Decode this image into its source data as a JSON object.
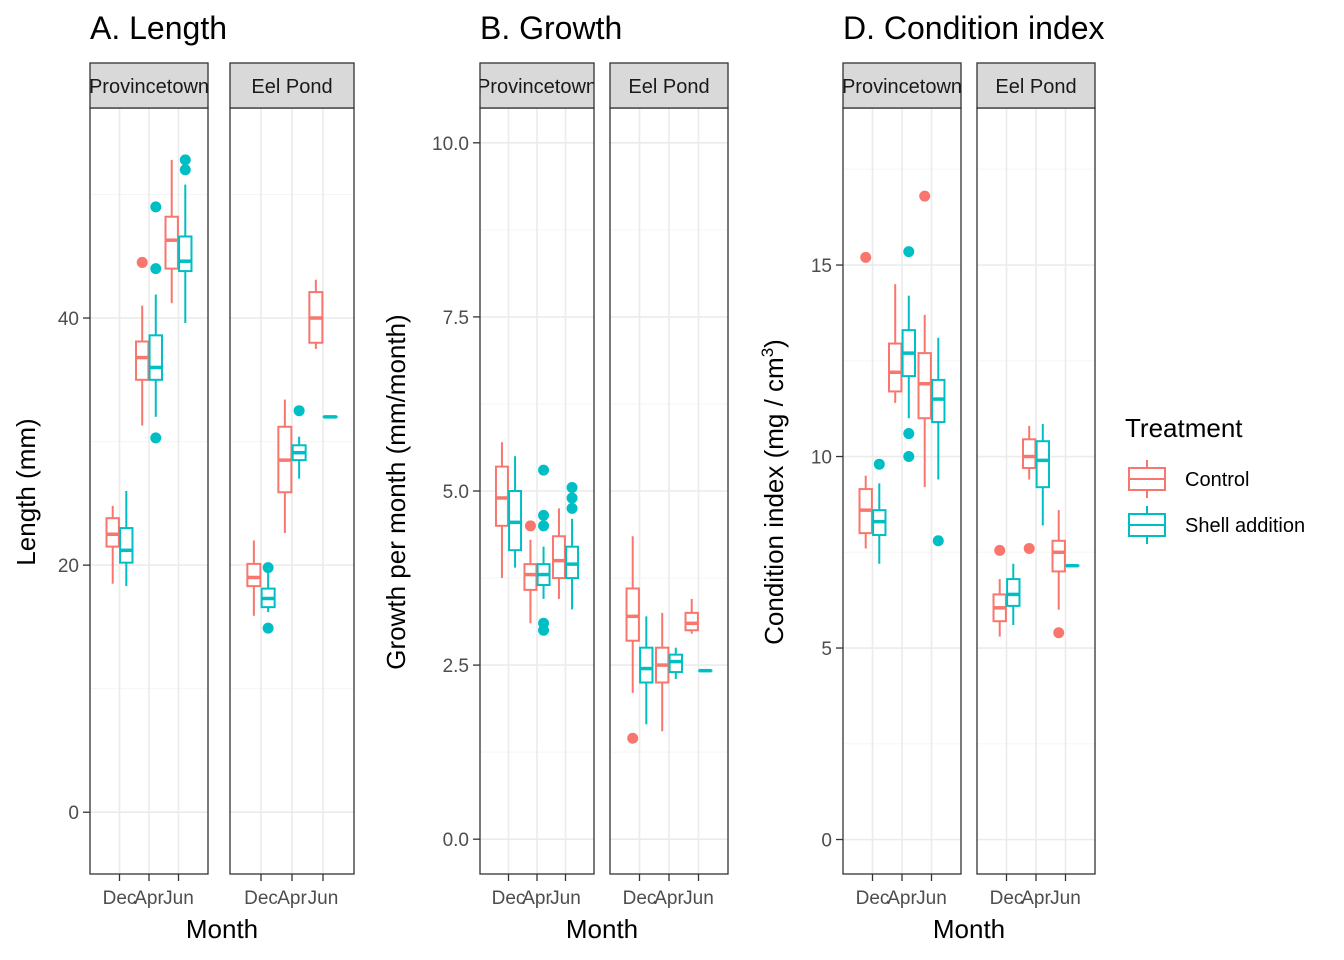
{
  "colors": {
    "control": "#F8766D",
    "shell": "#00BFC4",
    "grid_major": "#EBEBEB",
    "grid_minor": "#F5F5F5",
    "panel_border": "#333333",
    "strip_fill": "#D9D9D9"
  },
  "legend": {
    "title": "Treatment",
    "items": [
      {
        "label": "Control",
        "color": "#F8766D"
      },
      {
        "label": "Shell addition",
        "color": "#00BFC4"
      }
    ]
  },
  "chart_data": [
    {
      "type": "boxplot",
      "title": "A. Length",
      "xlabel": "Month",
      "ylabel": "Length (mm)",
      "ylim": [
        -5,
        57
      ],
      "yticks": [
        0,
        20,
        40
      ],
      "ytick_labels": [
        "0",
        "20",
        "40"
      ],
      "categories": [
        "Dec",
        "Apr",
        "Jun"
      ],
      "facets": [
        {
          "name": "Provincetown",
          "strip_label": "Provincetown",
          "groups": [
            {
              "month": "Dec",
              "treatment": "Control",
              "min": 18.5,
              "q1": 21.5,
              "median": 22.5,
              "q3": 23.8,
              "max": 24.8,
              "outliers": []
            },
            {
              "month": "Dec",
              "treatment": "Shell addition",
              "min": 18.3,
              "q1": 20.2,
              "median": 21.2,
              "q3": 23.0,
              "max": 26.0,
              "outliers": []
            },
            {
              "month": "Apr",
              "treatment": "Control",
              "min": 31.3,
              "q1": 35.0,
              "median": 36.8,
              "q3": 38.1,
              "max": 41.0,
              "outliers": [
                44.5
              ]
            },
            {
              "month": "Apr",
              "treatment": "Shell addition",
              "min": 32.0,
              "q1": 35.0,
              "median": 36.0,
              "q3": 38.6,
              "max": 41.9,
              "outliers": [
                49.0,
                44.0,
                30.3
              ]
            },
            {
              "month": "Jun",
              "treatment": "Control",
              "min": 41.2,
              "q1": 44.0,
              "median": 46.3,
              "q3": 48.2,
              "max": 52.8,
              "outliers": []
            },
            {
              "month": "Jun",
              "treatment": "Shell addition",
              "min": 39.6,
              "q1": 43.8,
              "median": 44.6,
              "q3": 46.6,
              "max": 50.8,
              "outliers": [
                52.8,
                52.0
              ]
            }
          ]
        },
        {
          "name": "Eel Pond",
          "strip_label": "Eel Pond",
          "groups": [
            {
              "month": "Dec",
              "treatment": "Control",
              "min": 15.9,
              "q1": 18.3,
              "median": 19.0,
              "q3": 20.1,
              "max": 22.0,
              "outliers": []
            },
            {
              "month": "Dec",
              "treatment": "Shell addition",
              "min": 16.2,
              "q1": 16.6,
              "median": 17.3,
              "q3": 18.1,
              "max": 19.6,
              "outliers": [
                19.8,
                14.9
              ]
            },
            {
              "month": "Apr",
              "treatment": "Control",
              "min": 22.6,
              "q1": 25.9,
              "median": 28.5,
              "q3": 31.2,
              "max": 33.4,
              "outliers": []
            },
            {
              "month": "Apr",
              "treatment": "Shell addition",
              "min": 27.0,
              "q1": 28.5,
              "median": 29.1,
              "q3": 29.7,
              "max": 30.4,
              "outliers": [
                32.5
              ]
            },
            {
              "month": "Jun",
              "treatment": "Control",
              "min": 37.5,
              "q1": 38.0,
              "median": 40.0,
              "q3": 42.1,
              "max": 43.1,
              "outliers": []
            },
            {
              "month": "Jun",
              "treatment": "Shell addition",
              "min": 32.0,
              "q1": 32.0,
              "median": 32.0,
              "q3": 32.0,
              "max": 32.0,
              "outliers": []
            }
          ]
        }
      ]
    },
    {
      "type": "boxplot",
      "title": "B. Growth",
      "xlabel": "Month",
      "ylabel": "Growth per month (mm/month)",
      "ylim": [
        -0.5,
        10.5
      ],
      "yticks": [
        0,
        2.5,
        5,
        7.5,
        10
      ],
      "ytick_labels": [
        "0.0",
        "2.5",
        "5.0",
        "7.5",
        "10.0"
      ],
      "categories": [
        "Dec",
        "Apr",
        "Jun"
      ],
      "facets": [
        {
          "name": "Provincetown",
          "strip_label": "Provincetown",
          "groups": [
            {
              "month": "Dec",
              "treatment": "Control",
              "min": 3.75,
              "q1": 4.5,
              "median": 4.9,
              "q3": 5.35,
              "max": 5.7,
              "outliers": []
            },
            {
              "month": "Dec",
              "treatment": "Shell addition",
              "min": 3.9,
              "q1": 4.15,
              "median": 4.55,
              "q3": 5.0,
              "max": 5.5,
              "outliers": []
            },
            {
              "month": "Apr",
              "treatment": "Control",
              "min": 3.1,
              "q1": 3.58,
              "median": 3.8,
              "q3": 3.95,
              "max": 4.3,
              "outliers": [
                4.5
              ]
            },
            {
              "month": "Apr",
              "treatment": "Shell addition",
              "min": 3.45,
              "q1": 3.65,
              "median": 3.8,
              "q3": 3.95,
              "max": 4.2,
              "outliers": [
                5.3,
                4.65,
                4.5,
                3.1,
                3.0
              ]
            },
            {
              "month": "Jun",
              "treatment": "Control",
              "min": 3.45,
              "q1": 3.75,
              "median": 4.0,
              "q3": 4.35,
              "max": 4.75,
              "outliers": []
            },
            {
              "month": "Jun",
              "treatment": "Shell addition",
              "min": 3.3,
              "q1": 3.75,
              "median": 3.95,
              "q3": 4.2,
              "max": 4.6,
              "outliers": [
                5.05,
                4.9,
                4.75
              ]
            }
          ]
        },
        {
          "name": "Eel Pond",
          "strip_label": "Eel Pond",
          "groups": [
            {
              "month": "Dec",
              "treatment": "Control",
              "min": 2.1,
              "q1": 2.85,
              "median": 3.2,
              "q3": 3.6,
              "max": 4.35,
              "outliers": [
                1.45
              ]
            },
            {
              "month": "Dec",
              "treatment": "Shell addition",
              "min": 1.65,
              "q1": 2.25,
              "median": 2.45,
              "q3": 2.75,
              "max": 3.2,
              "outliers": []
            },
            {
              "month": "Apr",
              "treatment": "Control",
              "min": 1.55,
              "q1": 2.25,
              "median": 2.5,
              "q3": 2.75,
              "max": 3.25,
              "outliers": []
            },
            {
              "month": "Apr",
              "treatment": "Shell addition",
              "min": 2.3,
              "q1": 2.4,
              "median": 2.55,
              "q3": 2.65,
              "max": 2.75,
              "outliers": []
            },
            {
              "month": "Jun",
              "treatment": "Control",
              "min": 2.95,
              "q1": 3.0,
              "median": 3.1,
              "q3": 3.25,
              "max": 3.45,
              "outliers": []
            },
            {
              "month": "Jun",
              "treatment": "Shell addition",
              "min": 2.42,
              "q1": 2.42,
              "median": 2.42,
              "q3": 2.42,
              "max": 2.42,
              "outliers": []
            }
          ]
        }
      ]
    },
    {
      "type": "boxplot",
      "title": "D. Condition index",
      "xlabel": "Month",
      "ylabel": "Condition index (mg / cm",
      "ylabel_superscript": "3",
      "ylabel_suffix": ")",
      "ylim": [
        -0.9,
        19.1
      ],
      "yticks": [
        0,
        5,
        10,
        15
      ],
      "ytick_labels": [
        "0",
        "5",
        "10",
        "15"
      ],
      "categories": [
        "Dec",
        "Apr",
        "Jun"
      ],
      "facets": [
        {
          "name": "Provincetown",
          "strip_label": "Provincetown",
          "groups": [
            {
              "month": "Dec",
              "treatment": "Control",
              "min": 7.6,
              "q1": 8.0,
              "median": 8.6,
              "q3": 9.15,
              "max": 9.5,
              "outliers": [
                15.2
              ]
            },
            {
              "month": "Dec",
              "treatment": "Shell addition",
              "min": 7.2,
              "q1": 7.95,
              "median": 8.3,
              "q3": 8.6,
              "max": 9.3,
              "outliers": [
                9.8
              ]
            },
            {
              "month": "Apr",
              "treatment": "Control",
              "min": 11.4,
              "q1": 11.7,
              "median": 12.2,
              "q3": 12.95,
              "max": 14.5,
              "outliers": []
            },
            {
              "month": "Apr",
              "treatment": "Shell addition",
              "min": 11.0,
              "q1": 12.1,
              "median": 12.7,
              "q3": 13.3,
              "max": 14.2,
              "outliers": [
                15.35,
                10.6,
                10.0
              ]
            },
            {
              "month": "Jun",
              "treatment": "Control",
              "min": 9.2,
              "q1": 11.0,
              "median": 11.9,
              "q3": 12.7,
              "max": 13.7,
              "outliers": [
                16.8
              ]
            },
            {
              "month": "Jun",
              "treatment": "Shell addition",
              "min": 9.4,
              "q1": 10.9,
              "median": 11.5,
              "q3": 12.0,
              "max": 13.1,
              "outliers": [
                7.8
              ]
            }
          ]
        },
        {
          "name": "Eel Pond",
          "strip_label": "Eel Pond",
          "groups": [
            {
              "month": "Dec",
              "treatment": "Control",
              "min": 5.3,
              "q1": 5.7,
              "median": 6.05,
              "q3": 6.4,
              "max": 6.8,
              "outliers": [
                7.55
              ]
            },
            {
              "month": "Dec",
              "treatment": "Shell addition",
              "min": 5.6,
              "q1": 6.1,
              "median": 6.4,
              "q3": 6.8,
              "max": 7.2,
              "outliers": []
            },
            {
              "month": "Apr",
              "treatment": "Control",
              "min": 9.4,
              "q1": 9.7,
              "median": 10.0,
              "q3": 10.45,
              "max": 10.8,
              "outliers": [
                7.6
              ]
            },
            {
              "month": "Apr",
              "treatment": "Shell addition",
              "min": 8.2,
              "q1": 9.2,
              "median": 9.9,
              "q3": 10.4,
              "max": 10.85,
              "outliers": []
            },
            {
              "month": "Jun",
              "treatment": "Control",
              "min": 6.0,
              "q1": 7.0,
              "median": 7.5,
              "q3": 7.8,
              "max": 8.6,
              "outliers": [
                5.4
              ]
            },
            {
              "month": "Jun",
              "treatment": "Shell addition",
              "min": 7.15,
              "q1": 7.15,
              "median": 7.15,
              "q3": 7.15,
              "max": 7.15,
              "outliers": []
            }
          ]
        }
      ]
    }
  ]
}
